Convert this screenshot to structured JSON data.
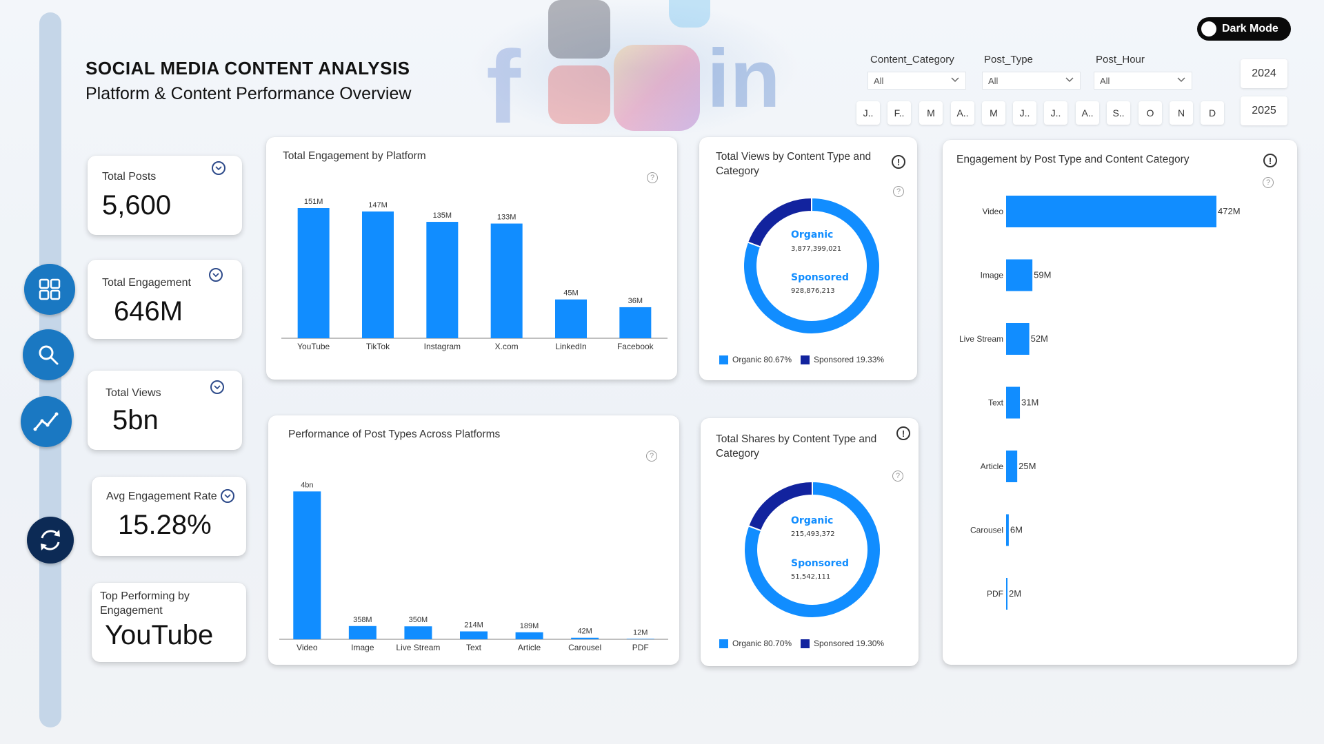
{
  "header": {
    "title": "SOCIAL MEDIA CONTENT ANALYSIS",
    "subtitle": "Platform & Content Performance Overview",
    "dark_mode_label": "Dark Mode"
  },
  "filters": {
    "content_category": {
      "label": "Content_Category",
      "value": "All"
    },
    "post_type": {
      "label": "Post_Type",
      "value": "All"
    },
    "post_hour": {
      "label": "Post_Hour",
      "value": "All"
    },
    "months": [
      "J..",
      "F..",
      "M",
      "A..",
      "M",
      "J..",
      "J..",
      "A..",
      "S..",
      "O",
      "N",
      "D"
    ],
    "years": [
      "2024",
      "2025"
    ]
  },
  "kpis": {
    "total_posts": {
      "label": "Total Posts",
      "value": "5,600"
    },
    "total_engagement": {
      "label": "Total Engagement",
      "value": "646M"
    },
    "total_views": {
      "label": "Total Views",
      "value": "5bn"
    },
    "avg_engagement_rate": {
      "label": "Avg Engagement Rate",
      "value": "15.28%"
    },
    "top_performing": {
      "label": "Top Performing by Engagement",
      "value": "YouTube"
    }
  },
  "nav": {
    "icons": [
      "dashboard-grid-icon",
      "search-icon",
      "trend-chart-icon",
      "refresh-icon"
    ]
  },
  "chart_data": [
    {
      "id": "engagement_by_platform",
      "type": "bar",
      "title": "Total Engagement by Platform",
      "categories": [
        "YouTube",
        "TikTok",
        "Instagram",
        "X.com",
        "LinkedIn",
        "Facebook"
      ],
      "values": [
        151,
        147,
        135,
        133,
        45,
        36
      ],
      "labels": [
        "151M",
        "147M",
        "135M",
        "133M",
        "45M",
        "36M"
      ],
      "unit": "M",
      "ylim": [
        0,
        155
      ],
      "color": "#118DFF"
    },
    {
      "id": "post_type_performance",
      "type": "bar",
      "title": "Performance of Post Types Across Platforms",
      "categories": [
        "Video",
        "Image",
        "Live Stream",
        "Text",
        "Article",
        "Carousel",
        "PDF"
      ],
      "values": [
        4000,
        358,
        350,
        214,
        189,
        42,
        12
      ],
      "labels": [
        "4bn",
        "358M",
        "350M",
        "214M",
        "189M",
        "42M",
        "12M"
      ],
      "unit": "M",
      "ylim": [
        0,
        4100
      ],
      "color": "#118DFF"
    },
    {
      "id": "views_by_content_type",
      "type": "pie",
      "title": "Total Views by Content Type and Category",
      "slices": [
        {
          "name": "Organic",
          "value": 3877399021,
          "label": "3,877,399,021",
          "legend": "Organic 80.67%",
          "color": "#118DFF"
        },
        {
          "name": "Sponsored",
          "value": 928876213,
          "label": "928,876,213",
          "legend": "Sponsored 19.33%",
          "color": "#12239E"
        }
      ]
    },
    {
      "id": "shares_by_content_type",
      "type": "pie",
      "title": "Total Shares by Content Type and Category",
      "slices": [
        {
          "name": "Organic",
          "value": 215493372,
          "label": "215,493,372",
          "legend": "Organic 80.70%",
          "color": "#118DFF"
        },
        {
          "name": "Sponsored",
          "value": 51542111,
          "label": "51,542,111",
          "legend": "Sponsored 19.30%",
          "color": "#12239E"
        }
      ]
    },
    {
      "id": "engagement_by_post_type",
      "type": "bar",
      "orientation": "horizontal",
      "title": "Engagement by Post Type and Content Category",
      "categories": [
        "Video",
        "Image",
        "Live Stream",
        "Text",
        "Article",
        "Carousel",
        "PDF"
      ],
      "values": [
        472,
        59,
        52,
        31,
        25,
        6,
        2
      ],
      "labels": [
        "472M",
        "59M",
        "52M",
        "31M",
        "25M",
        "6M",
        "2M"
      ],
      "unit": "M",
      "xlim": [
        0,
        472
      ],
      "color": "#118DFF"
    }
  ]
}
